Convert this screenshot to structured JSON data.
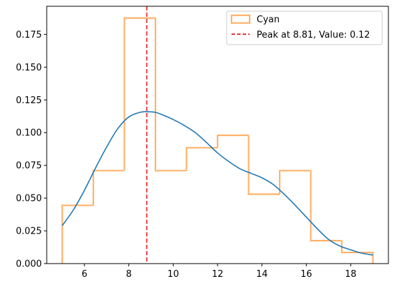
{
  "chart_data": {
    "type": "histogram",
    "title": "",
    "xlabel": "",
    "ylabel": "",
    "xlim": [
      4.3,
      19.7
    ],
    "ylim": [
      0,
      0.1965
    ],
    "xticks": [
      6,
      8,
      10,
      12,
      14,
      16,
      18
    ],
    "yticks": [
      0.0,
      0.025,
      0.05,
      0.075,
      0.1,
      0.125,
      0.15,
      0.175
    ],
    "ytick_labels": [
      "0.000",
      "0.025",
      "0.050",
      "0.075",
      "0.100",
      "0.125",
      "0.150",
      "0.175"
    ],
    "histogram": {
      "name": "Cyan",
      "color": "#ffb26b",
      "bin_edges": [
        5.0,
        6.4,
        7.8,
        9.2,
        10.6,
        12.0,
        13.4,
        14.8,
        16.2,
        17.6,
        19.0
      ],
      "densities": [
        0.0445,
        0.071,
        0.1875,
        0.071,
        0.0885,
        0.098,
        0.053,
        0.071,
        0.0175,
        0.0085
      ]
    },
    "kde": {
      "color": "#1f77b4",
      "x": [
        5.0,
        5.5,
        6.0,
        6.5,
        7.0,
        7.5,
        8.0,
        8.5,
        8.81,
        9.2,
        9.6,
        10.0,
        10.5,
        11.0,
        11.5,
        12.0,
        12.5,
        13.0,
        13.5,
        14.0,
        14.5,
        15.0,
        15.5,
        16.0,
        16.5,
        17.0,
        17.5,
        18.0,
        18.5,
        19.0
      ],
      "y": [
        0.029,
        0.041,
        0.056,
        0.073,
        0.089,
        0.103,
        0.112,
        0.1155,
        0.116,
        0.1155,
        0.113,
        0.11,
        0.1055,
        0.1,
        0.0925,
        0.0845,
        0.078,
        0.0725,
        0.069,
        0.0655,
        0.0605,
        0.053,
        0.0445,
        0.0355,
        0.0265,
        0.0185,
        0.0135,
        0.0105,
        0.008,
        0.0065
      ]
    },
    "peak_line": {
      "x": 8.81,
      "color": "#e41a1c",
      "label": "Peak at 8.81, Value: 0.12"
    },
    "legend": {
      "position": "top-right",
      "entries": [
        "Cyan",
        "Peak at 8.81, Value: 0.12"
      ]
    }
  }
}
